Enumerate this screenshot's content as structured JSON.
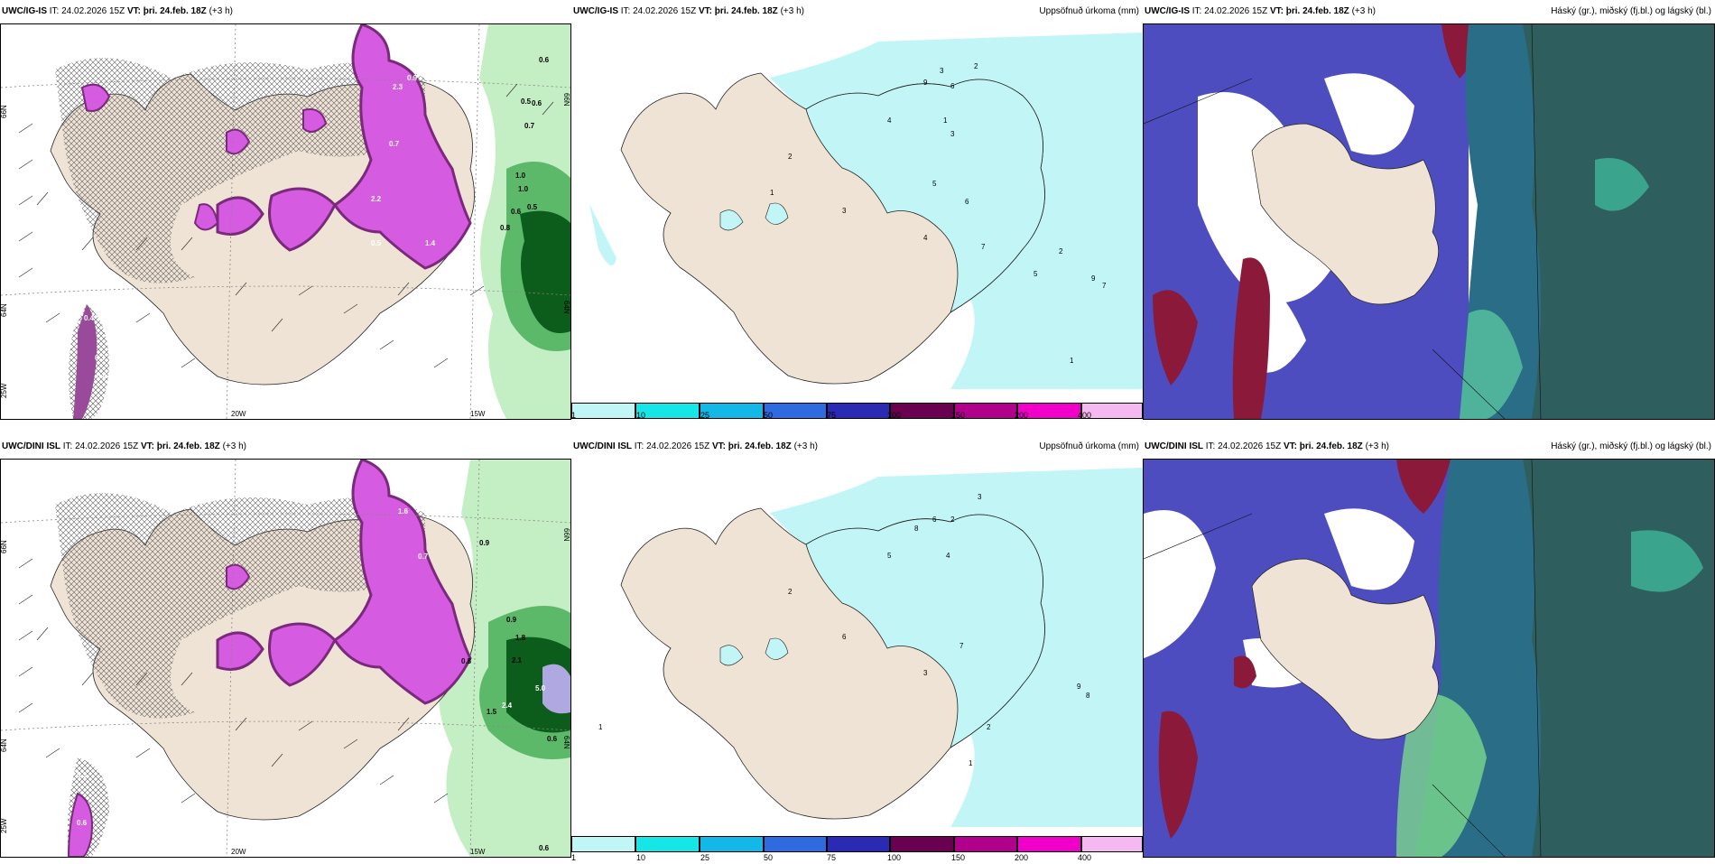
{
  "rows": [
    {
      "panels": [
        {
          "model": "UWC/IG-IS",
          "it_label": "IT:",
          "it": "24.02.2026 15Z",
          "vt_label": "VT:",
          "vt": "þri. 24.feb. 18Z",
          "lead": "(+3 h)",
          "right_title": ""
        },
        {
          "model": "UWC/IG-IS",
          "it_label": "IT:",
          "it": "24.02.2026 15Z",
          "vt_label": "VT:",
          "vt": "þri. 24.feb. 18Z",
          "lead": "(+3 h)",
          "right_title": "Uppsöfnuð úrkoma (mm)"
        },
        {
          "model": "UWC/IG-IS",
          "it_label": "IT:",
          "it": "24.02.2026 15Z",
          "vt_label": "VT:",
          "vt": "þri. 24.feb. 18Z",
          "lead": "(+3 h)",
          "right_title": "Háský (gr.), miðský (fj.bl.) og lágský (bl.)"
        }
      ]
    },
    {
      "panels": [
        {
          "model": "UWC/DINI ISL",
          "it_label": "IT:",
          "it": "24.02.2026 15Z",
          "vt_label": "VT:",
          "vt": "þri. 24.feb. 18Z",
          "lead": "(+3 h)",
          "right_title": ""
        },
        {
          "model": "UWC/DINI ISL",
          "it_label": "IT:",
          "it": "24.02.2026 15Z",
          "vt_label": "VT:",
          "vt": "þri. 24.feb. 18Z",
          "lead": "(+3 h)",
          "right_title": "Uppsöfnuð úrkoma (mm)"
        },
        {
          "model": "UWC/DINI ISL",
          "it_label": "IT:",
          "it": "24.02.2026 15Z",
          "vt_label": "VT:",
          "vt": "þri. 24.feb. 18Z",
          "lead": "(+3 h)",
          "right_title": "Háský (gr.), miðský (fj.bl.) og lágský (bl.)"
        }
      ]
    }
  ],
  "axes": {
    "lon_labels": [
      "20W",
      "15W"
    ],
    "lat_labels_left": [
      "66N",
      "64N",
      "25W"
    ],
    "lat_labels_right": [
      "66N",
      "64N"
    ]
  },
  "colorbar": {
    "ticks": [
      "1",
      "10",
      "25",
      "50",
      "75",
      "100",
      "150",
      "200",
      "400"
    ],
    "colors": [
      "#bff7f7",
      "#16e6e6",
      "#12b8e6",
      "#2f6be0",
      "#2a2ab4",
      "#6a0050",
      "#b0008c",
      "#f000c8",
      "#f5b8f0"
    ]
  },
  "colors": {
    "land": "#efe3d5",
    "sea": "#ffffff",
    "precip_light": "#c2f6f6",
    "magenta": "#d55be0",
    "magenta_dark": "#7a2a7a",
    "green_light": "#c4eec4",
    "green_dark": "#0c5c1c",
    "cloud_low": "#4d4dc0",
    "cloud_mid": "#2a6d86",
    "cloud_high": "#8b1a3a"
  },
  "map_numbers": {
    "r1p1": [
      "0.6",
      "0.5",
      "0.6",
      "0.7",
      "0.5",
      "2.3",
      "0.9",
      "1.0",
      "0.8",
      "0.6",
      "1.0",
      "0.4",
      "0.3",
      "0.4",
      "1.4",
      "0.5",
      "0.7",
      "2.2"
    ],
    "r1p2": [
      "2",
      "3",
      "9",
      "6",
      "1",
      "4",
      "3",
      "5",
      "2",
      "7",
      "6",
      "1",
      "3",
      "5",
      "4",
      "9",
      "7",
      "2",
      "1"
    ],
    "r2p1": [
      "0.6",
      "0.9",
      "1.6",
      "0.7",
      "0.9",
      "1.8",
      "2.1",
      "2.4",
      "5.0",
      "0.8",
      "0.6",
      "0.3",
      "0.6",
      "0.6",
      "1.5"
    ],
    "r2p2": [
      "3",
      "2",
      "1",
      "4",
      "5",
      "8",
      "6",
      "2",
      "7",
      "9",
      "8",
      "1",
      "2",
      "6",
      "3"
    ]
  }
}
